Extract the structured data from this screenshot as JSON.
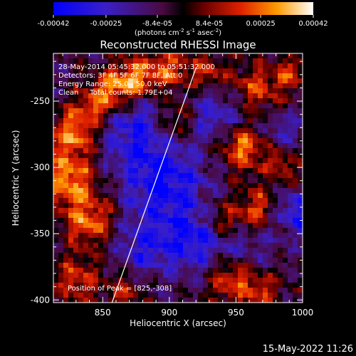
{
  "chart_data": {
    "type": "heatmap",
    "title": "Reconstructed RHESSI Image",
    "xlabel": "Heliocentric X (arcsec)",
    "ylabel": "Heliocentric Y (arcsec)",
    "xlim": [
      813,
      1000
    ],
    "ylim": [
      -402,
      -214
    ],
    "x_ticks": [
      850,
      900,
      950,
      1000
    ],
    "y_ticks": [
      -250,
      -300,
      -350,
      -400
    ],
    "colorbar": {
      "min": -0.00042,
      "max": 0.00042,
      "ticks": [
        "-0.00042",
        "-0.00025",
        "-8.4e-05",
        "8.4e-05",
        "0.00025",
        "0.00042"
      ],
      "tick_values": [
        -0.00042,
        -0.00025,
        -8.4e-05,
        8.4e-05,
        0.00025,
        0.00042
      ],
      "unit_label": [
        "(photons cm",
        "-2",
        " s",
        "-1",
        " asec",
        "-2",
        ")"
      ]
    },
    "annotations": [
      "28-May-2014 05:45:32.000 to 05:51:32.000",
      "Detectors: 3F 4F 5F 6F 7F 8F, Att 0",
      "Energy Range: 25.0 - 50.0 keV",
      "Clean     Total counts: 1.79E+04"
    ],
    "peak_text": "Position of Peak = [825,-308]",
    "limb_line": [
      [
        857,
        -402
      ],
      [
        920,
        -225
      ]
    ],
    "features": [
      {
        "x": 825,
        "y": -308,
        "a": 1.0,
        "s": 14
      },
      {
        "x": 828,
        "y": -275,
        "a": 0.85,
        "s": 12
      },
      {
        "x": 845,
        "y": -255,
        "a": 0.8,
        "s": 12
      },
      {
        "x": 860,
        "y": -240,
        "a": 0.75,
        "s": 11
      },
      {
        "x": 875,
        "y": -232,
        "a": 0.85,
        "s": 10
      },
      {
        "x": 900,
        "y": -225,
        "a": 0.8,
        "s": 11
      },
      {
        "x": 930,
        "y": -228,
        "a": 0.6,
        "s": 10
      },
      {
        "x": 965,
        "y": -240,
        "a": 0.7,
        "s": 12
      },
      {
        "x": 990,
        "y": -230,
        "a": 0.6,
        "s": 10
      },
      {
        "x": 955,
        "y": -285,
        "a": 0.95,
        "s": 12
      },
      {
        "x": 985,
        "y": -300,
        "a": 0.6,
        "s": 9
      },
      {
        "x": 905,
        "y": -265,
        "a": 0.6,
        "s": 10
      },
      {
        "x": 940,
        "y": -340,
        "a": 0.65,
        "s": 11
      },
      {
        "x": 965,
        "y": -330,
        "a": 0.75,
        "s": 10
      },
      {
        "x": 945,
        "y": -385,
        "a": 0.8,
        "s": 12
      },
      {
        "x": 970,
        "y": -395,
        "a": 0.6,
        "s": 10
      },
      {
        "x": 840,
        "y": -340,
        "a": 0.85,
        "s": 14
      },
      {
        "x": 830,
        "y": -385,
        "a": 0.7,
        "s": 12
      },
      {
        "x": 865,
        "y": -395,
        "a": 0.5,
        "s": 10
      },
      {
        "x": 870,
        "y": -270,
        "a": -0.7,
        "s": 18
      },
      {
        "x": 895,
        "y": -310,
        "a": -0.9,
        "s": 22
      },
      {
        "x": 920,
        "y": -355,
        "a": -0.8,
        "s": 18
      },
      {
        "x": 880,
        "y": -360,
        "a": -0.6,
        "s": 15
      },
      {
        "x": 935,
        "y": -260,
        "a": -0.6,
        "s": 14
      },
      {
        "x": 995,
        "y": -335,
        "a": -0.7,
        "s": 12
      },
      {
        "x": 985,
        "y": -270,
        "a": -0.45,
        "s": 10
      },
      {
        "x": 960,
        "y": -360,
        "a": -0.4,
        "s": 10
      }
    ]
  },
  "footer": {
    "timestamp": "15-May-2022 11:26"
  }
}
